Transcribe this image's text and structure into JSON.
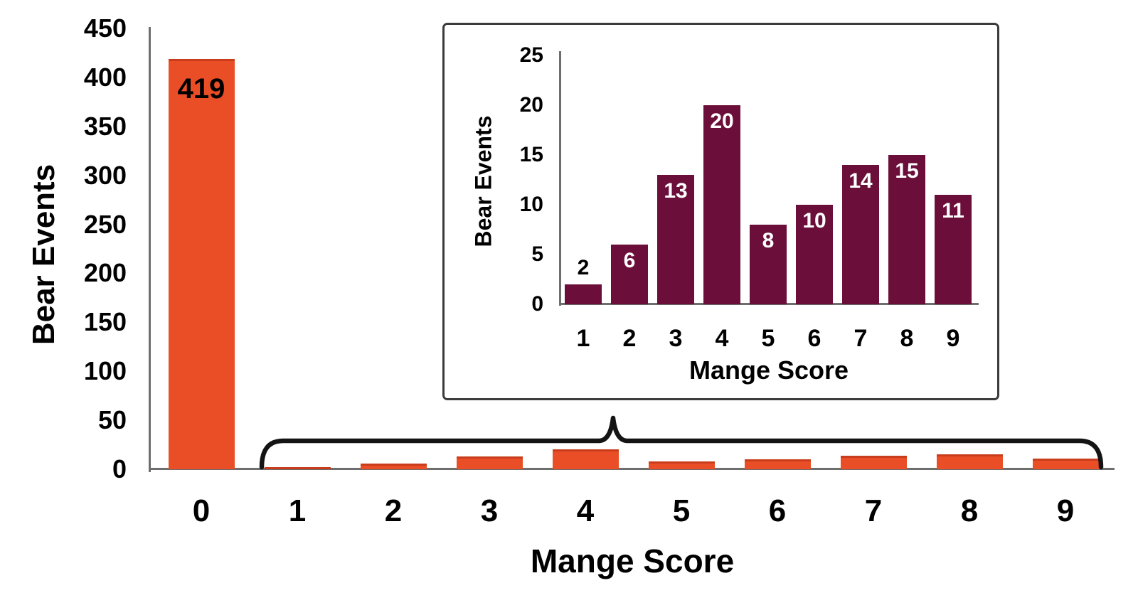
{
  "figure": {
    "background": "#FFFFFF",
    "inset_border_color": "#3B3B3B"
  },
  "chart_data": [
    {
      "id": "main",
      "type": "bar",
      "title": "",
      "xlabel": "Mange Score",
      "ylabel": "Bear Events",
      "categories": [
        "0",
        "1",
        "2",
        "3",
        "4",
        "5",
        "6",
        "7",
        "8",
        "9"
      ],
      "values": [
        419,
        2,
        6,
        13,
        20,
        8,
        10,
        14,
        15,
        11
      ],
      "ylim": [
        0,
        450
      ],
      "yticks": [
        0,
        50,
        100,
        150,
        200,
        250,
        300,
        350,
        400,
        450
      ],
      "bar_labels": [
        "419",
        "",
        "",
        "",
        "",
        "",
        "",
        "",
        "",
        ""
      ],
      "bar_label_positions": [
        "inside",
        "",
        "",
        "",
        "",
        "",
        "",
        "",
        "",
        ""
      ],
      "bar_label_colors": [
        "#000000",
        "",
        "",
        "",
        "",
        "",
        "",
        "",
        "",
        ""
      ],
      "bar_color": "#E94E26",
      "bar_top_edge_color": "#C93D1C",
      "axis_color": "#6E6E6E",
      "grid": false,
      "legend_position": "none"
    },
    {
      "id": "inset",
      "type": "bar",
      "title": "",
      "xlabel": "Mange Score",
      "ylabel": "Bear Events",
      "categories": [
        "1",
        "2",
        "3",
        "4",
        "5",
        "6",
        "7",
        "8",
        "9"
      ],
      "values": [
        2,
        6,
        13,
        20,
        8,
        10,
        14,
        15,
        11
      ],
      "ylim": [
        0,
        25
      ],
      "yticks": [
        0,
        5,
        10,
        15,
        20,
        25
      ],
      "bar_labels": [
        "2",
        "6",
        "13",
        "20",
        "8",
        "10",
        "14",
        "15",
        "11"
      ],
      "bar_label_positions": [
        "above",
        "inside",
        "inside",
        "inside",
        "inside",
        "inside",
        "inside",
        "inside",
        "inside"
      ],
      "bar_label_colors": [
        "#000000",
        "#ffffff",
        "#ffffff",
        "#ffffff",
        "#ffffff",
        "#ffffff",
        "#ffffff",
        "#ffffff",
        "#ffffff"
      ],
      "bar_color": "#6B0F3A",
      "axis_color": "#6E6E6E",
      "grid": false,
      "legend_position": "none"
    }
  ],
  "annotations": {
    "brace": {
      "description": "curly brace grouping mange scores 1 through 9, pointing up to the inset detail chart",
      "color": "#141414"
    }
  }
}
